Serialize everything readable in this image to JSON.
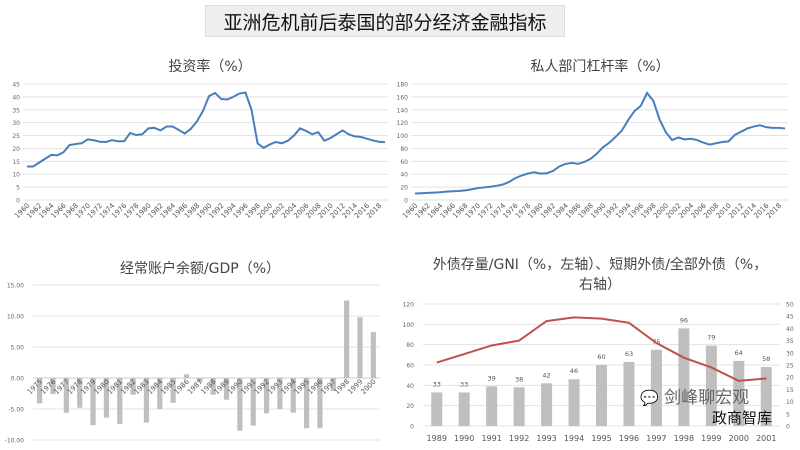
{
  "page_title": "亚洲危机前后泰国的部分经济金融指标",
  "watermarks": {
    "wechat": "剑峰聊宏观",
    "corner": "政商智库"
  },
  "colors": {
    "blue_line": "#4a7ebb",
    "bar_gray": "#bfbfbf",
    "red_line": "#c0504d",
    "grid": "#e3e3e3"
  },
  "chart_data": [
    {
      "type": "line",
      "title": "投资率（%）",
      "x": [
        1960,
        1961,
        1962,
        1963,
        1964,
        1965,
        1966,
        1967,
        1968,
        1969,
        1970,
        1971,
        1972,
        1973,
        1974,
        1975,
        1976,
        1977,
        1978,
        1979,
        1980,
        1981,
        1982,
        1983,
        1984,
        1985,
        1986,
        1987,
        1988,
        1989,
        1990,
        1991,
        1992,
        1993,
        1994,
        1995,
        1996,
        1997,
        1998,
        1999,
        2000,
        2001,
        2002,
        2003,
        2004,
        2005,
        2006,
        2007,
        2008,
        2009,
        2010,
        2011,
        2012,
        2013,
        2014,
        2015,
        2016,
        2017,
        2018,
        2019
      ],
      "values": [
        13,
        13,
        14.5,
        16,
        17.5,
        17.3,
        18.5,
        21.3,
        21.7,
        22,
        23.5,
        23.2,
        22.6,
        22.5,
        23.2,
        22.8,
        22.8,
        26,
        25.2,
        25.5,
        27.8,
        28,
        27,
        28.5,
        28.5,
        27.2,
        25.8,
        27.6,
        30.5,
        34.5,
        40.3,
        41.5,
        39.2,
        39,
        40,
        41.3,
        41.7,
        35,
        22,
        20.2,
        21.5,
        22.5,
        22,
        23,
        25,
        27.8,
        26.8,
        25.5,
        26.3,
        23,
        24,
        25.5,
        27,
        25.5,
        24.7,
        24.5,
        23.8,
        23.1,
        22.6,
        22.4
      ],
      "ylim": [
        0,
        45
      ],
      "ystep": 5,
      "yticks": [
        "0",
        "5",
        "10",
        "15",
        "20",
        "25",
        "30",
        "35",
        "40",
        "45"
      ],
      "xtick_labels": [
        "1960",
        "1962",
        "1964",
        "1966",
        "1968",
        "1970",
        "1972",
        "1974",
        "1976",
        "1978",
        "1980",
        "1982",
        "1984",
        "1986",
        "1988",
        "1990",
        "1992",
        "1994",
        "1996",
        "1998",
        "2000",
        "2002",
        "2004",
        "2006",
        "2008",
        "2010",
        "2012",
        "2014",
        "2016",
        "2018"
      ],
      "grid": true
    },
    {
      "type": "line",
      "title": "私人部门杠杆率（%）",
      "x": [
        1960,
        1961,
        1962,
        1963,
        1964,
        1965,
        1966,
        1967,
        1968,
        1969,
        1970,
        1971,
        1972,
        1973,
        1974,
        1975,
        1976,
        1977,
        1978,
        1979,
        1980,
        1981,
        1982,
        1983,
        1984,
        1985,
        1986,
        1987,
        1988,
        1989,
        1990,
        1991,
        1992,
        1993,
        1994,
        1995,
        1996,
        1997,
        1998,
        1999,
        2000,
        2001,
        2002,
        2003,
        2004,
        2005,
        2006,
        2007,
        2008,
        2009,
        2010,
        2011,
        2012,
        2013,
        2014,
        2015,
        2016,
        2017,
        2018,
        2019
      ],
      "values": [
        10,
        10.5,
        11,
        11.5,
        12,
        13,
        13.5,
        14,
        15,
        16.5,
        18.5,
        19.5,
        20.5,
        22,
        24,
        28,
        34,
        38,
        41,
        43,
        41,
        41.5,
        45,
        52,
        56,
        57.5,
        56,
        59,
        64,
        72,
        82,
        89,
        98,
        108,
        124,
        138,
        146,
        166,
        154,
        125,
        105,
        93,
        97,
        94,
        95,
        93,
        89,
        86,
        88,
        90,
        91,
        101,
        106,
        111,
        114,
        116,
        113,
        112,
        112,
        111
      ],
      "ylim": [
        0,
        180
      ],
      "ystep": 20,
      "yticks": [
        "0",
        "20",
        "40",
        "60",
        "80",
        "100",
        "120",
        "140",
        "160",
        "180"
      ],
      "xtick_labels": [
        "1960",
        "1962",
        "1964",
        "1966",
        "1968",
        "1970",
        "1972",
        "1974",
        "1976",
        "1978",
        "1980",
        "1982",
        "1984",
        "1986",
        "1988",
        "1990",
        "1992",
        "1994",
        "1996",
        "1998",
        "2000",
        "2002",
        "2004",
        "2006",
        "2008",
        "2010",
        "2012",
        "2014",
        "2016",
        "2018"
      ],
      "grid": true
    },
    {
      "type": "bar",
      "title": "经常账户余额/GDP（%）",
      "categories": [
        "1975",
        "1976",
        "1977",
        "1978",
        "1979",
        "1980",
        "1981",
        "1982",
        "1983",
        "1984",
        "1985",
        "1986",
        "1987",
        "1988",
        "1989",
        "1990",
        "1991",
        "1992",
        "1993",
        "1994",
        "1995",
        "1996",
        "1997",
        "1998",
        "1999",
        "2000"
      ],
      "values": [
        -4.1,
        -2.6,
        -5.6,
        -4.8,
        -7.6,
        -6.4,
        -7.4,
        -2.7,
        -7.2,
        -5.0,
        -4.0,
        0.6,
        -0.7,
        -2.7,
        -3.5,
        -8.5,
        -7.7,
        -5.7,
        -5.0,
        -5.6,
        -8.1,
        -8.1,
        -2.1,
        12.5,
        9.8,
        7.4
      ],
      "ylim": [
        -10,
        15
      ],
      "yticks": [
        "-10.00",
        "-5.00",
        "0.00",
        "5.00",
        "10.00",
        "15.00"
      ],
      "grid": true
    },
    {
      "type": "bar+line",
      "title": "外债存量/GNI（%，左轴）、短期外债/全部外债（%，右轴）",
      "categories": [
        "1989",
        "1990",
        "1991",
        "1992",
        "1993",
        "1994",
        "1995",
        "1996",
        "1997",
        "1998",
        "1999",
        "2000",
        "2001"
      ],
      "series": [
        {
          "axis": "left",
          "kind": "bar",
          "values": [
            33,
            33,
            39,
            38,
            42,
            46,
            60,
            63,
            75,
            96,
            79,
            64,
            58
          ],
          "data_labels": [
            "33",
            "33",
            "39",
            "38",
            "42",
            "46",
            "60",
            "63",
            "75",
            "96",
            "79",
            "64",
            "58"
          ]
        },
        {
          "axis": "right",
          "kind": "line",
          "values": [
            26,
            29.5,
            33,
            35,
            43,
            44.5,
            44,
            42.3,
            34,
            28,
            24,
            18.5,
            19.5
          ]
        }
      ],
      "ylim_left": [
        0,
        120
      ],
      "yticks_left": [
        "0",
        "20",
        "40",
        "60",
        "80",
        "100",
        "120"
      ],
      "ylim_right": [
        0,
        50
      ],
      "yticks_right": [
        "0",
        "5",
        "10",
        "15",
        "20",
        "25",
        "30",
        "35",
        "40",
        "45",
        "50"
      ],
      "grid": true
    }
  ]
}
